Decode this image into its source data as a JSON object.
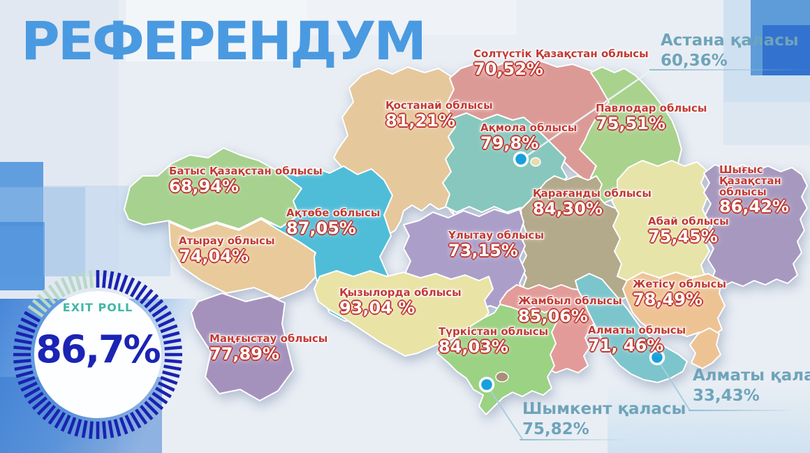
{
  "title": "РЕФЕРЕНДУМ",
  "exit_poll": {
    "label": "EXIT POLL",
    "value": "86,7%",
    "ring_color": "#1a23b0",
    "ring_accent": "#b7d8c8",
    "label_color": "#3fb8a6",
    "value_color": "#1b24b4"
  },
  "colors": {
    "title_blue": "#4a9ae1",
    "region_label_red": "#c23a33",
    "city_label_teal": "#6ea4ba",
    "city_dot_blue": "#18a0dc",
    "leader_line": "#a9cede"
  },
  "regions": [
    {
      "id": "soltustik",
      "name": "Солтүстік Қазақстан облысы",
      "value": "70,52%",
      "color": "#dc9a96"
    },
    {
      "id": "kostanai",
      "name": "Қостанай облысы",
      "value": "81,21%",
      "color": "#e6c89d"
    },
    {
      "id": "akmola",
      "name": "Ақмола облысы",
      "value": "79,8%",
      "color": "#87c7bd"
    },
    {
      "id": "pavlodar",
      "name": "Павлодар облысы",
      "value": "75,51%",
      "color": "#a9d28d"
    },
    {
      "id": "batys",
      "name": "Батыс Қазақстан облысы",
      "value": "68,94%",
      "color": "#a6d18e"
    },
    {
      "id": "aktobe",
      "name": "Ақтөбе облысы",
      "value": "87,05%",
      "color": "#4fbdd8"
    },
    {
      "id": "atyrau",
      "name": "Атырау облысы",
      "value": "74,04%",
      "color": "#e9ca9b"
    },
    {
      "id": "karagandy",
      "name": "Қарағанды облысы",
      "value": "84,30%",
      "color": "#b3a98b"
    },
    {
      "id": "ulytau",
      "name": "Ұлытау облысы",
      "value": "73,15%",
      "color": "#ab9fc9"
    },
    {
      "id": "shygys",
      "name": "Шығыс Қазақстан облысы",
      "value": "86,42%",
      "color": "#a798bf"
    },
    {
      "id": "abai",
      "name": "Абай облысы",
      "value": "75,45%",
      "color": "#e6e4a9"
    },
    {
      "id": "zhetisu",
      "name": "Жетісу облысы",
      "value": "78,49%",
      "color": "#eec394"
    },
    {
      "id": "kyzylorda",
      "name": "Қызылорда облысы",
      "value": "93,04 %",
      "color": "#e9e3a6"
    },
    {
      "id": "zhambyl",
      "name": "Жамбыл облысы",
      "value": "85,06%",
      "color": "#e29b98"
    },
    {
      "id": "turkistan",
      "name": "Түркістан облысы",
      "value": "84,03%",
      "color": "#9cd283"
    },
    {
      "id": "mangystau",
      "name": "Маңғыстау облысы",
      "value": "77,89%",
      "color": "#a592bc"
    },
    {
      "id": "almaty_obl",
      "name": "Алматы облысы",
      "value": "71, 46%",
      "color": "#7cc5cd"
    }
  ],
  "cities": [
    {
      "id": "astana",
      "name": "Астана қаласы",
      "value": "60,36%"
    },
    {
      "id": "almaty",
      "name": "Алматы қаласы",
      "value": "33,43%"
    },
    {
      "id": "shymkent",
      "name": "Шымкент қаласы",
      "value": "75,82%"
    }
  ]
}
